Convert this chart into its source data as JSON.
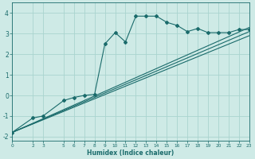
{
  "xlabel": "Humidex (Indice chaleur)",
  "bg_color": "#ceeae6",
  "grid_color": "#aad4cf",
  "line_color": "#1a6b6b",
  "xticks": [
    0,
    2,
    3,
    5,
    6,
    7,
    8,
    9,
    10,
    11,
    12,
    13,
    14,
    15,
    16,
    17,
    18,
    19,
    20,
    21,
    22,
    23
  ],
  "xlim": [
    0,
    23
  ],
  "ylim": [
    -2.2,
    4.5
  ],
  "yticks": [
    -2,
    -1,
    0,
    1,
    2,
    3,
    4
  ],
  "main_series": {
    "x": [
      0,
      2,
      3,
      5,
      6,
      7,
      8,
      9,
      10,
      11,
      12,
      13,
      14,
      15,
      16,
      17,
      18,
      19,
      20,
      21,
      22,
      23
    ],
    "y": [
      -1.8,
      -1.1,
      -1.0,
      -0.25,
      -0.1,
      0.0,
      0.05,
      2.5,
      3.05,
      2.6,
      3.85,
      3.85,
      3.85,
      3.55,
      3.4,
      3.1,
      3.25,
      3.05,
      3.05,
      3.05,
      3.2,
      3.2
    ]
  },
  "ref_lines": [
    {
      "x0": 0,
      "y0": -1.8,
      "x1": 23,
      "y1": 3.3
    },
    {
      "x0": 0,
      "y0": -1.8,
      "x1": 23,
      "y1": 3.1
    },
    {
      "x0": 0,
      "y0": -1.8,
      "x1": 23,
      "y1": 2.9
    }
  ]
}
